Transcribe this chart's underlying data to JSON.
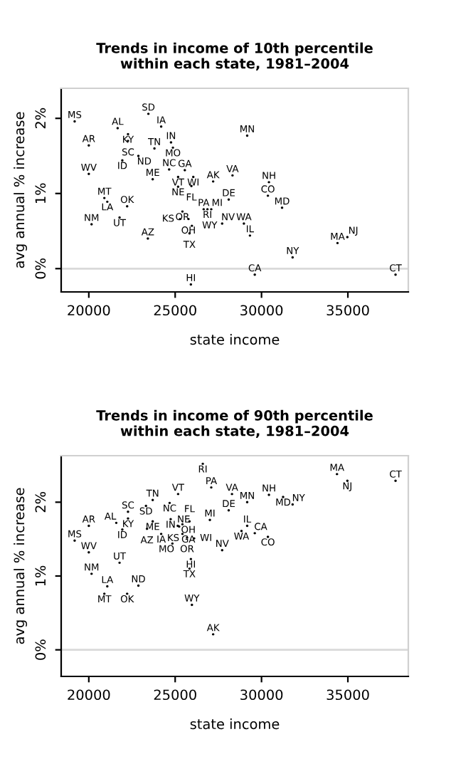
{
  "chart_data": [
    {
      "type": "scatter",
      "title": "Trends in income of 10th percentile\nwithin each state, 1981–2004",
      "xlabel": "state income",
      "ylabel": "avg annual % increase",
      "marker": "circle",
      "xlim": [
        18400,
        38500
      ],
      "ylim": [
        -0.31,
        2.4
      ],
      "xticks": [
        20000,
        25000,
        30000,
        35000
      ],
      "yticks": [
        {
          "value": 0,
          "label": "0%"
        },
        {
          "value": 1,
          "label": "1%"
        },
        {
          "value": 2,
          "label": "2%"
        }
      ],
      "ref_lines": [
        {
          "axis": "y",
          "value": 0,
          "color": "#d9d9d9"
        }
      ],
      "series": [
        {
          "color": "#000000",
          "x": [
            19180,
            23450,
            21670,
            22270,
            24190,
            22270,
            20000,
            29170,
            24760,
            23800,
            24870,
            22870,
            21940,
            24650,
            25560,
            20000,
            23700,
            25170,
            26050,
            28320,
            27200,
            30430,
            25170,
            25940,
            20900,
            21070,
            22220,
            30370,
            28100,
            31190,
            25420,
            26650,
            26870,
            27090,
            25280,
            25770,
            25970,
            25830,
            20160,
            21780,
            27720,
            28980,
            29330,
            23420,
            34400,
            34970,
            31800,
            29610,
            37760,
            25910
          ],
          "values": [
            1.96,
            2.06,
            1.87,
            1.79,
            1.89,
            1.7,
            1.64,
            1.77,
            1.68,
            1.6,
            1.61,
            1.5,
            1.44,
            1.32,
            1.31,
            1.26,
            1.19,
            1.22,
            1.22,
            1.24,
            1.16,
            1.15,
            1.09,
            1.1,
            0.94,
            0.89,
            0.83,
            0.97,
            0.92,
            0.81,
            0.76,
            0.79,
            0.79,
            0.79,
            0.66,
            0.66,
            0.57,
            0.47,
            0.59,
            0.68,
            0.6,
            0.6,
            0.44,
            0.4,
            0.34,
            0.42,
            0.15,
            -0.08,
            -0.08,
            -0.21
          ],
          "value_labels": [
            "MS",
            "SD",
            "AL",
            "KY",
            "IA",
            "SC",
            "AR",
            "MN",
            "IN",
            "TN",
            "MO",
            "ND",
            "ID",
            "NC",
            "GA",
            "WV",
            "ME",
            "VT",
            "WI",
            "VA",
            "AK",
            "NH",
            "NE",
            "FL",
            "MT",
            "LA",
            "OK",
            "CO",
            "DE",
            "MD",
            "OR",
            "PA",
            "RI",
            "MI",
            "KS",
            "OH",
            "WY",
            "TX",
            "NM",
            "UT",
            "NV",
            "WA",
            "IL",
            "AZ",
            "MA",
            "NJ",
            "NY",
            "CA",
            "CT",
            "HI"
          ]
        }
      ]
    },
    {
      "type": "scatter",
      "title": "Trends in income of 90th percentile\nwithin each state, 1981–2004",
      "xlabel": "state income",
      "ylabel": "avg annual % increase",
      "marker": "circle",
      "xlim": [
        18400,
        38500
      ],
      "ylim": [
        -0.36,
        2.63
      ],
      "xticks": [
        20000,
        25000,
        30000,
        35000
      ],
      "yticks": [
        {
          "value": 0,
          "label": "0%"
        },
        {
          "value": 1,
          "label": "1%"
        },
        {
          "value": 2,
          "label": "2%"
        }
      ],
      "ref_lines": [
        {
          "axis": "y",
          "value": 0,
          "color": "#d9d9d9"
        }
      ],
      "series": [
        {
          "color": "#000000",
          "x": [
            26600,
            34370,
            34970,
            37760,
            27090,
            28290,
            29170,
            30430,
            31250,
            31800,
            25170,
            23700,
            24680,
            23310,
            28100,
            22270,
            22270,
            21590,
            20000,
            23700,
            24740,
            27010,
            25150,
            25420,
            25830,
            21940,
            23370,
            24190,
            25230,
            25420,
            25690,
            26100,
            29170,
            28840,
            29610,
            30370,
            19180,
            24840,
            20000,
            27720,
            21780,
            25910,
            25830,
            20160,
            21070,
            22870,
            20900,
            22220,
            25970,
            27200
          ],
          "values": [
            2.52,
            2.38,
            2.29,
            2.29,
            2.2,
            2.11,
            2.0,
            2.1,
            2.07,
            1.97,
            2.11,
            2.03,
            1.99,
            1.95,
            1.89,
            1.87,
            1.78,
            1.72,
            1.68,
            1.74,
            1.77,
            1.76,
            1.68,
            1.7,
            1.74,
            1.63,
            1.64,
            1.57,
            1.67,
            1.57,
            1.52,
            1.51,
            1.68,
            1.61,
            1.58,
            1.53,
            1.48,
            1.44,
            1.32,
            1.35,
            1.18,
            1.23,
            1.1,
            1.03,
            0.86,
            0.87,
            0.76,
            0.76,
            0.61,
            0.21
          ],
          "value_labels": [
            "RI",
            "MA",
            "NJ",
            "CT",
            "PA",
            "VA",
            "MN",
            "NH",
            "MD",
            "NY",
            "VT",
            "TN",
            "NC",
            "SD",
            "DE",
            "SC",
            "KY",
            "AL",
            "AR",
            "ME",
            "IN",
            "MI",
            "NE",
            "OH",
            "FL",
            "ID",
            "AZ",
            "IA",
            "KS",
            "GA",
            "OR",
            "WI",
            "IL",
            "WA",
            "CA",
            "CO",
            "MS",
            "MO",
            "WV",
            "NV",
            "UT",
            "HI",
            "TX",
            "NM",
            "LA",
            "ND",
            "MT",
            "OK",
            "WY",
            "AK"
          ]
        }
      ]
    }
  ]
}
